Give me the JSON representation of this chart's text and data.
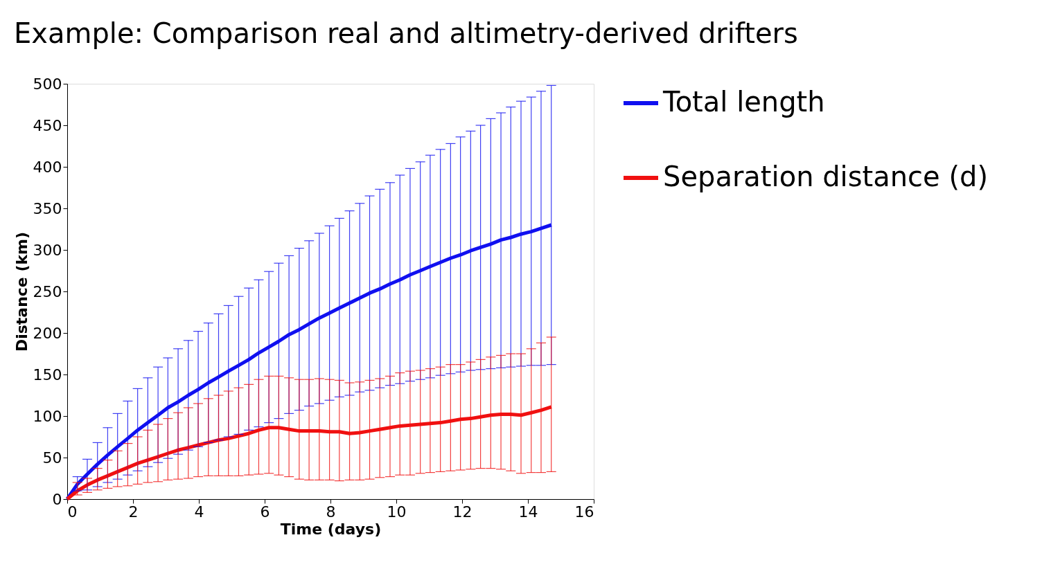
{
  "chart_data": {
    "type": "line",
    "title": "Example: Comparison real and altimetry-derived drifters",
    "xlabel": "Time (days)",
    "ylabel": "Distance (km)",
    "x": [
      0,
      0.31,
      0.61,
      0.92,
      1.23,
      1.53,
      1.84,
      2.14,
      2.45,
      2.76,
      3.06,
      3.37,
      3.68,
      3.98,
      4.29,
      4.6,
      4.9,
      5.21,
      5.52,
      5.82,
      6.13,
      6.43,
      6.74,
      7.05,
      7.35,
      7.66,
      7.97,
      8.27,
      8.58,
      8.89,
      9.19,
      9.5,
      9.81,
      10.11,
      10.42,
      10.73,
      11.03,
      11.34,
      11.65,
      11.95,
      12.26,
      12.56,
      12.87,
      13.18,
      13.48,
      13.79,
      14.1,
      14.4,
      14.71
    ],
    "series": [
      {
        "name": "Total length",
        "color": "#1010f0",
        "values": [
          0,
          18,
          30,
          42,
          53,
          63,
          73,
          83,
          92,
          101,
          110,
          117,
          125,
          132,
          140,
          147,
          154,
          161,
          168,
          176,
          183,
          190,
          198,
          204,
          211,
          218,
          224,
          230,
          236,
          242,
          248,
          253,
          259,
          264,
          270,
          275,
          280,
          285,
          290,
          294,
          299,
          303,
          307,
          312,
          315,
          319,
          322,
          326,
          330
        ],
        "errors": [
          null,
          [
            10,
            27
          ],
          [
            11,
            48
          ],
          [
            15,
            68
          ],
          [
            20,
            86
          ],
          [
            24,
            103
          ],
          [
            29,
            118
          ],
          [
            34,
            133
          ],
          [
            39,
            146
          ],
          [
            44,
            159
          ],
          [
            49,
            170
          ],
          [
            54,
            181
          ],
          [
            59,
            191
          ],
          [
            63,
            202
          ],
          [
            68,
            212
          ],
          [
            71,
            223
          ],
          [
            75,
            233
          ],
          [
            78,
            244
          ],
          [
            83,
            254
          ],
          [
            87,
            264
          ],
          [
            92,
            274
          ],
          [
            97,
            284
          ],
          [
            103,
            293
          ],
          [
            107,
            302
          ],
          [
            112,
            311
          ],
          [
            115,
            320
          ],
          [
            119,
            329
          ],
          [
            123,
            338
          ],
          [
            125,
            347
          ],
          [
            129,
            356
          ],
          [
            131,
            365
          ],
          [
            134,
            373
          ],
          [
            137,
            381
          ],
          [
            139,
            390
          ],
          [
            142,
            398
          ],
          [
            144,
            406
          ],
          [
            146,
            414
          ],
          [
            149,
            421
          ],
          [
            151,
            428
          ],
          [
            153,
            436
          ],
          [
            155,
            443
          ],
          [
            156,
            450
          ],
          [
            157,
            458
          ],
          [
            158,
            465
          ],
          [
            159,
            472
          ],
          [
            160,
            479
          ],
          [
            161,
            484
          ],
          [
            161,
            491
          ],
          [
            162,
            498
          ]
        ]
      },
      {
        "name": "Separation distance (d)",
        "color": "#f01010",
        "values": [
          0,
          10,
          17,
          23,
          28,
          33,
          38,
          43,
          47,
          51,
          55,
          59,
          62,
          65,
          68,
          71,
          73,
          76,
          79,
          83,
          86,
          86,
          84,
          82,
          82,
          82,
          81,
          81,
          79,
          80,
          82,
          84,
          86,
          88,
          89,
          90,
          91,
          92,
          94,
          96,
          97,
          99,
          101,
          102,
          102,
          101,
          104,
          107,
          111
        ],
        "errors": [
          null,
          [
            5,
            20
          ],
          [
            8,
            25
          ],
          [
            11,
            37
          ],
          [
            13,
            47
          ],
          [
            15,
            58
          ],
          [
            16,
            67
          ],
          [
            18,
            75
          ],
          [
            20,
            83
          ],
          [
            21,
            90
          ],
          [
            23,
            97
          ],
          [
            24,
            104
          ],
          [
            25,
            110
          ],
          [
            27,
            115
          ],
          [
            28,
            121
          ],
          [
            28,
            125
          ],
          [
            28,
            130
          ],
          [
            28,
            134
          ],
          [
            29,
            138
          ],
          [
            30,
            144
          ],
          [
            31,
            148
          ],
          [
            29,
            148
          ],
          [
            27,
            146
          ],
          [
            24,
            144
          ],
          [
            23,
            144
          ],
          [
            23,
            145
          ],
          [
            23,
            144
          ],
          [
            22,
            143
          ],
          [
            23,
            140
          ],
          [
            23,
            141
          ],
          [
            24,
            143
          ],
          [
            26,
            145
          ],
          [
            27,
            148
          ],
          [
            29,
            152
          ],
          [
            29,
            154
          ],
          [
            31,
            155
          ],
          [
            32,
            157
          ],
          [
            33,
            159
          ],
          [
            34,
            162
          ],
          [
            35,
            162
          ],
          [
            36,
            165
          ],
          [
            37,
            168
          ],
          [
            37,
            171
          ],
          [
            36,
            173
          ],
          [
            34,
            175
          ],
          [
            31,
            175
          ],
          [
            32,
            181
          ],
          [
            32,
            188
          ],
          [
            33,
            195
          ]
        ]
      }
    ],
    "xlim": [
      0,
      16
    ],
    "xticks": [
      0,
      2,
      4,
      6,
      8,
      10,
      12,
      14,
      16
    ],
    "ylim": [
      0,
      500
    ],
    "yticks": [
      0,
      50,
      100,
      150,
      200,
      250,
      300,
      350,
      400,
      450,
      500
    ],
    "grid": false,
    "legend": "right",
    "marker": "none",
    "line_style": "solid"
  }
}
